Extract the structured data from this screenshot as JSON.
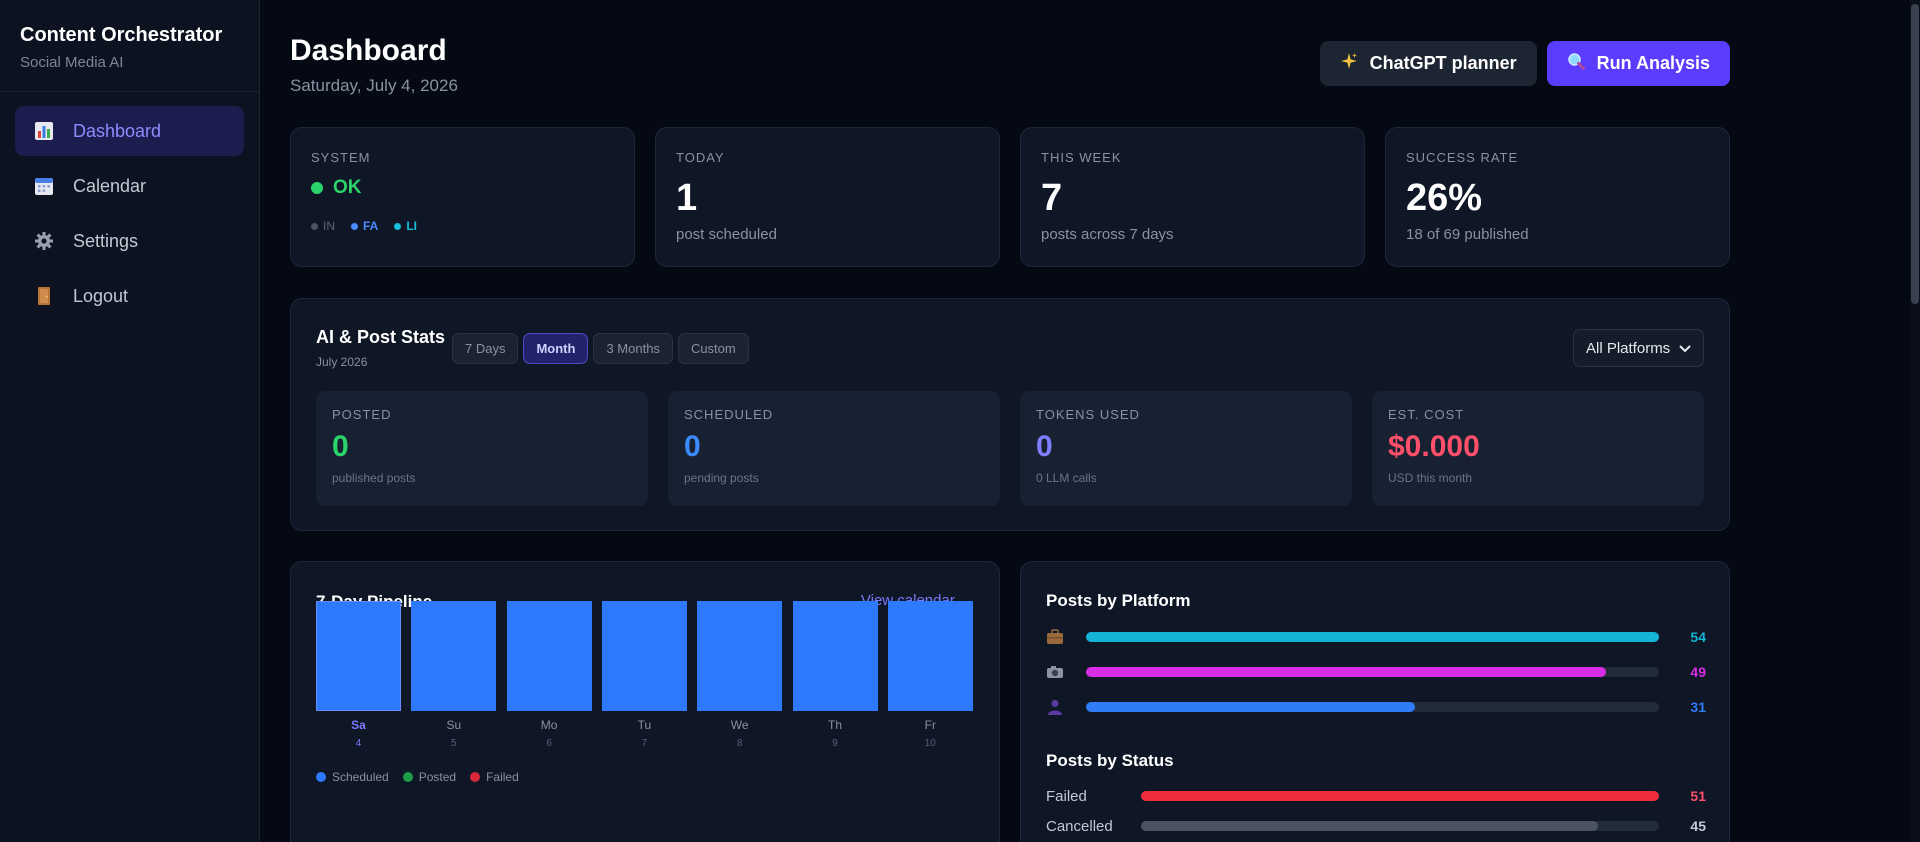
{
  "sidebar": {
    "title": "Content Orchestrator",
    "subtitle": "Social Media AI",
    "items": [
      {
        "label": "Dashboard",
        "icon": "bar-chart-icon",
        "active": true
      },
      {
        "label": "Calendar",
        "icon": "calendar-icon",
        "active": false
      },
      {
        "label": "Settings",
        "icon": "gear-icon",
        "active": false
      },
      {
        "label": "Logout",
        "icon": "door-icon",
        "active": false
      }
    ]
  },
  "header": {
    "title": "Dashboard",
    "date": "Saturday, July 4, 2026",
    "planner_label": "ChatGPT planner",
    "analysis_label": "Run Analysis"
  },
  "kpis": {
    "system": {
      "label": "SYSTEM",
      "status": "OK",
      "platforms": [
        "IN",
        "FA",
        "LI"
      ]
    },
    "today": {
      "label": "TODAY",
      "value": "1",
      "sub": "post scheduled"
    },
    "week": {
      "label": "THIS WEEK",
      "value": "7",
      "sub": "posts across 7 days"
    },
    "success": {
      "label": "SUCCESS RATE",
      "value": "26%",
      "sub": "18 of 69 published"
    }
  },
  "stats": {
    "title": "AI & Post Stats",
    "subtitle": "July 2026",
    "ranges": [
      "7 Days",
      "Month",
      "3 Months",
      "Custom"
    ],
    "active_range": "Month",
    "platform_select": "All Platforms",
    "cards": [
      {
        "label": "POSTED",
        "value": "0",
        "sub": "published posts",
        "color": "#2bd46a"
      },
      {
        "label": "SCHEDULED",
        "value": "0",
        "sub": "pending posts",
        "color": "#3b8bff"
      },
      {
        "label": "TOKENS USED",
        "value": "0",
        "sub": "0 LLM calls",
        "color": "#7e7eff"
      },
      {
        "label": "EST. COST",
        "value": "$0.000",
        "sub": "USD this month",
        "color": "#ff4f6b"
      }
    ]
  },
  "pipeline": {
    "title": "7-Day Pipeline",
    "link": "View calendar →",
    "days": [
      {
        "day": "Sa",
        "date": "4"
      },
      {
        "day": "Su",
        "date": "5"
      },
      {
        "day": "Mo",
        "date": "6"
      },
      {
        "day": "Tu",
        "date": "7"
      },
      {
        "day": "We",
        "date": "8"
      },
      {
        "day": "Th",
        "date": "9"
      },
      {
        "day": "Fr",
        "date": "10"
      }
    ],
    "legend": [
      "Scheduled",
      "Posted",
      "Failed"
    ]
  },
  "platforms": {
    "title": "Posts by Platform",
    "rows": [
      {
        "icon": "briefcase-icon",
        "value": 54,
        "color": "#13b4d4"
      },
      {
        "icon": "camera-icon",
        "value": 49,
        "color": "#d92ce6"
      },
      {
        "icon": "person-icon",
        "value": 31,
        "color": "#2f7cf6"
      }
    ],
    "max": 54
  },
  "status": {
    "title": "Posts by Status",
    "rows": [
      {
        "label": "Failed",
        "value": 51,
        "color": "#ee2c3c"
      },
      {
        "label": "Cancelled",
        "value": 45,
        "color": "#4b5363"
      }
    ],
    "max": 51
  }
}
